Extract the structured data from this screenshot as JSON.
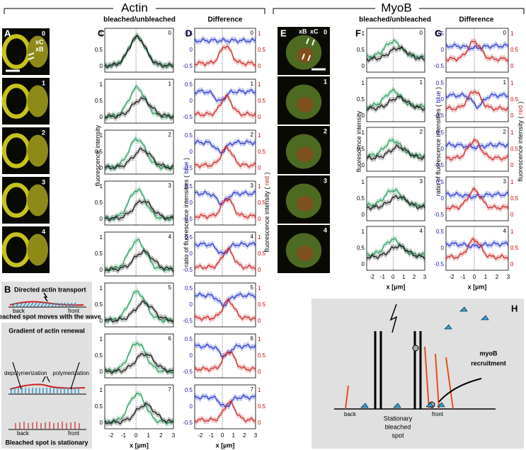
{
  "headers": {
    "actin": "Actin",
    "myob": "MyoB"
  },
  "panel_labels": {
    "a": "A",
    "b": "B",
    "c": "C",
    "d": "D",
    "e": "E",
    "f": "F",
    "g": "G",
    "h": "H"
  },
  "column_titles": {
    "c": "bleached/unbleached",
    "d": "Difference",
    "f": "bleached/unbleached",
    "g": "Difference"
  },
  "frame_numbers": [
    "0",
    "1",
    "2",
    "3",
    "4",
    "5",
    "6",
    "7"
  ],
  "markers": {
    "a": [
      "xC",
      "xB"
    ],
    "e": [
      "xB",
      "xC"
    ]
  },
  "axes": {
    "intensity_label": "fluorescence intensity",
    "intensity_ticks": [
      "1",
      "0.5",
      "0"
    ],
    "ratio_label": [
      "ratio of fluorescence intensities (",
      "blue",
      ")"
    ],
    "red_label": [
      "fluorescence intensity (",
      "red",
      ")"
    ],
    "ratio_ticks": [
      "0.5",
      "0",
      "-0.5"
    ],
    "red_ticks": [
      "1",
      "0.5",
      "0"
    ],
    "xticks": [
      "-2",
      "-1",
      "0",
      "1",
      "2",
      "3"
    ],
    "xlabel": "x [µm]"
  },
  "panel_b": {
    "title": "Directed actin transport",
    "back": "back",
    "front": "front",
    "caption": "Bleached spot moves with the wave"
  },
  "panel_b2": {
    "title": "Gradient of actin renewal",
    "depolymerization": "depolymerization",
    "polymerization": "polymerization",
    "back": "back",
    "front": "front",
    "caption": "Bleached spot is stationary"
  },
  "panel_h": {
    "recruitment": [
      "myoB",
      "recruitment"
    ],
    "back": "back",
    "front": "front",
    "spot": [
      "Stationary",
      "bleached",
      "spot"
    ]
  }
}
